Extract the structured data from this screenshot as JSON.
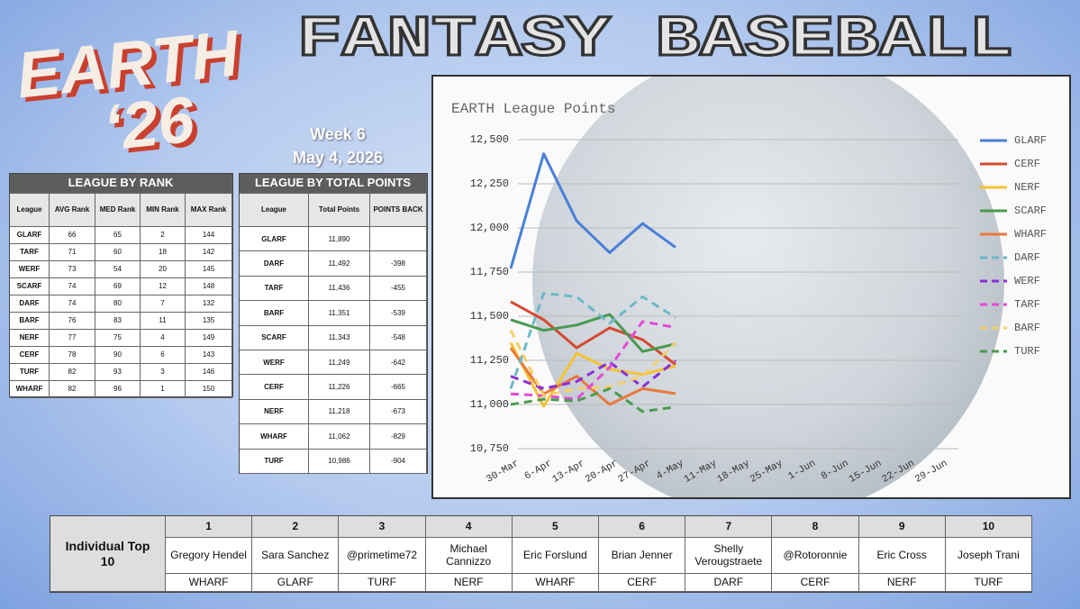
{
  "logo": {
    "line1": "EARTH",
    "line2": "‘26"
  },
  "title": "FANTASY BASEBALL",
  "week": "Week 6",
  "date": "May 4, 2026",
  "rank_table": {
    "title": "LEAGUE BY RANK",
    "headers": [
      "League",
      "AVG Rank",
      "MED Rank",
      "MIN Rank",
      "MAX Rank"
    ],
    "rows": [
      [
        "GLARF",
        66,
        65,
        2,
        144
      ],
      [
        "TARF",
        71,
        60,
        18,
        142
      ],
      [
        "WERF",
        73,
        54,
        20,
        145
      ],
      [
        "SCARF",
        74,
        69,
        12,
        148
      ],
      [
        "DARF",
        74,
        80,
        7,
        132
      ],
      [
        "BARF",
        76,
        83,
        11,
        135
      ],
      [
        "NERF",
        77,
        75,
        4,
        149
      ],
      [
        "CERF",
        78,
        90,
        6,
        143
      ],
      [
        "TURF",
        82,
        93,
        3,
        146
      ],
      [
        "WHARF",
        82,
        96,
        1,
        150
      ]
    ]
  },
  "points_table": {
    "title": "LEAGUE BY TOTAL POINTS",
    "headers": [
      "League",
      "Total Points",
      "POINTS BACK"
    ],
    "rows": [
      [
        "GLARF",
        "11,890",
        null
      ],
      [
        "DARF",
        "11,492",
        "-398"
      ],
      [
        "TARF",
        "11,436",
        "-455"
      ],
      [
        "BARF",
        "11,351",
        "-539"
      ],
      [
        "SCARF",
        "11,343",
        "-548"
      ],
      [
        "WERF",
        "11,249",
        "-642"
      ],
      [
        "CERF",
        "11,226",
        "-665"
      ],
      [
        "NERF",
        "11,218",
        "-673"
      ],
      [
        "WHARF",
        "11,062",
        "-829"
      ],
      [
        "TURF",
        "10,986",
        "-904"
      ]
    ]
  },
  "chart_data": {
    "type": "line",
    "title": "EARTH League Points",
    "categories": [
      "30-Mar",
      "6-Apr",
      "13-Apr",
      "20-Apr",
      "27-Apr",
      "4-May",
      "11-May",
      "18-May",
      "25-May",
      "1-Jun",
      "8-Jun",
      "15-Jun",
      "22-Jun",
      "29-Jun"
    ],
    "ylim": [
      10750,
      12500
    ],
    "yticks": [
      {
        "value": 10750,
        "label": "10,750"
      },
      {
        "value": 11000,
        "label": "11,000"
      },
      {
        "value": 11250,
        "label": "11,250"
      },
      {
        "value": 11500,
        "label": "11,500"
      },
      {
        "value": 11750,
        "label": "11,750"
      },
      {
        "value": 12000,
        "label": "12,000"
      },
      {
        "value": 12250,
        "label": "12,250"
      },
      {
        "value": 12500,
        "label": "12,500"
      }
    ],
    "grid": true,
    "legend": "right",
    "series": [
      {
        "name": "GLARF",
        "color": "#4a7fd8",
        "dashed": false,
        "values": [
          11770,
          12420,
          12040,
          11860,
          12025,
          11890,
          null,
          null,
          null,
          null,
          null,
          null,
          null,
          null
        ]
      },
      {
        "name": "CERF",
        "color": "#d54a32",
        "dashed": false,
        "values": [
          11582,
          11480,
          11321,
          11434,
          11367,
          11226,
          null,
          null,
          null,
          null,
          null,
          null,
          null,
          null
        ]
      },
      {
        "name": "NERF",
        "color": "#f4c233",
        "dashed": false,
        "values": [
          11350,
          10990,
          11290,
          11200,
          11170,
          11218,
          null,
          null,
          null,
          null,
          null,
          null,
          null,
          null
        ]
      },
      {
        "name": "SCARF",
        "color": "#4a9a4f",
        "dashed": false,
        "values": [
          11480,
          11420,
          11450,
          11510,
          11300,
          11343,
          null,
          null,
          null,
          null,
          null,
          null,
          null,
          null
        ]
      },
      {
        "name": "WHARF",
        "color": "#e8793b",
        "dashed": false,
        "values": [
          11320,
          11060,
          11160,
          11000,
          11090,
          11062,
          null,
          null,
          null,
          null,
          null,
          null,
          null,
          null
        ]
      },
      {
        "name": "DARF",
        "color": "#6cb8c8",
        "dashed": true,
        "values": [
          11090,
          11630,
          11610,
          11460,
          11610,
          11492,
          null,
          null,
          null,
          null,
          null,
          null,
          null,
          null
        ]
      },
      {
        "name": "WERF",
        "color": "#8b2fd8",
        "dashed": true,
        "values": [
          11160,
          11090,
          11130,
          11240,
          11100,
          11249,
          null,
          null,
          null,
          null,
          null,
          null,
          null,
          null
        ]
      },
      {
        "name": "TARF",
        "color": "#e34ad8",
        "dashed": true,
        "values": [
          11060,
          11050,
          11030,
          11210,
          11470,
          11436,
          null,
          null,
          null,
          null,
          null,
          null,
          null,
          null
        ]
      },
      {
        "name": "BARF",
        "color": "#f5cf6a",
        "dashed": true,
        "values": [
          11420,
          11050,
          11090,
          11100,
          11160,
          11351,
          null,
          null,
          null,
          null,
          null,
          null,
          null,
          null
        ]
      },
      {
        "name": "TURF",
        "color": "#4a9a4f",
        "dashed": true,
        "values": [
          11000,
          11030,
          11020,
          11090,
          10960,
          10986,
          null,
          null,
          null,
          null,
          null,
          null,
          null,
          null
        ]
      }
    ]
  },
  "top10": {
    "label": "Individual Top 10",
    "ranks": [
      1,
      2,
      3,
      4,
      5,
      6,
      7,
      8,
      9,
      10
    ],
    "names": [
      "Gregory Hendel",
      "Sara Sanchez",
      "@primetime72",
      "Michael Cannizzo",
      "Eric Forslund",
      "Brian Jenner",
      "Shelly Verougstraete",
      "@Rotoronnie",
      "Eric Cross",
      "Joseph Trani"
    ],
    "leagues": [
      "WHARF",
      "GLARF",
      "TURF",
      "NERF",
      "WHARF",
      "CERF",
      "DARF",
      "CERF",
      "NERF",
      "TURF"
    ]
  }
}
